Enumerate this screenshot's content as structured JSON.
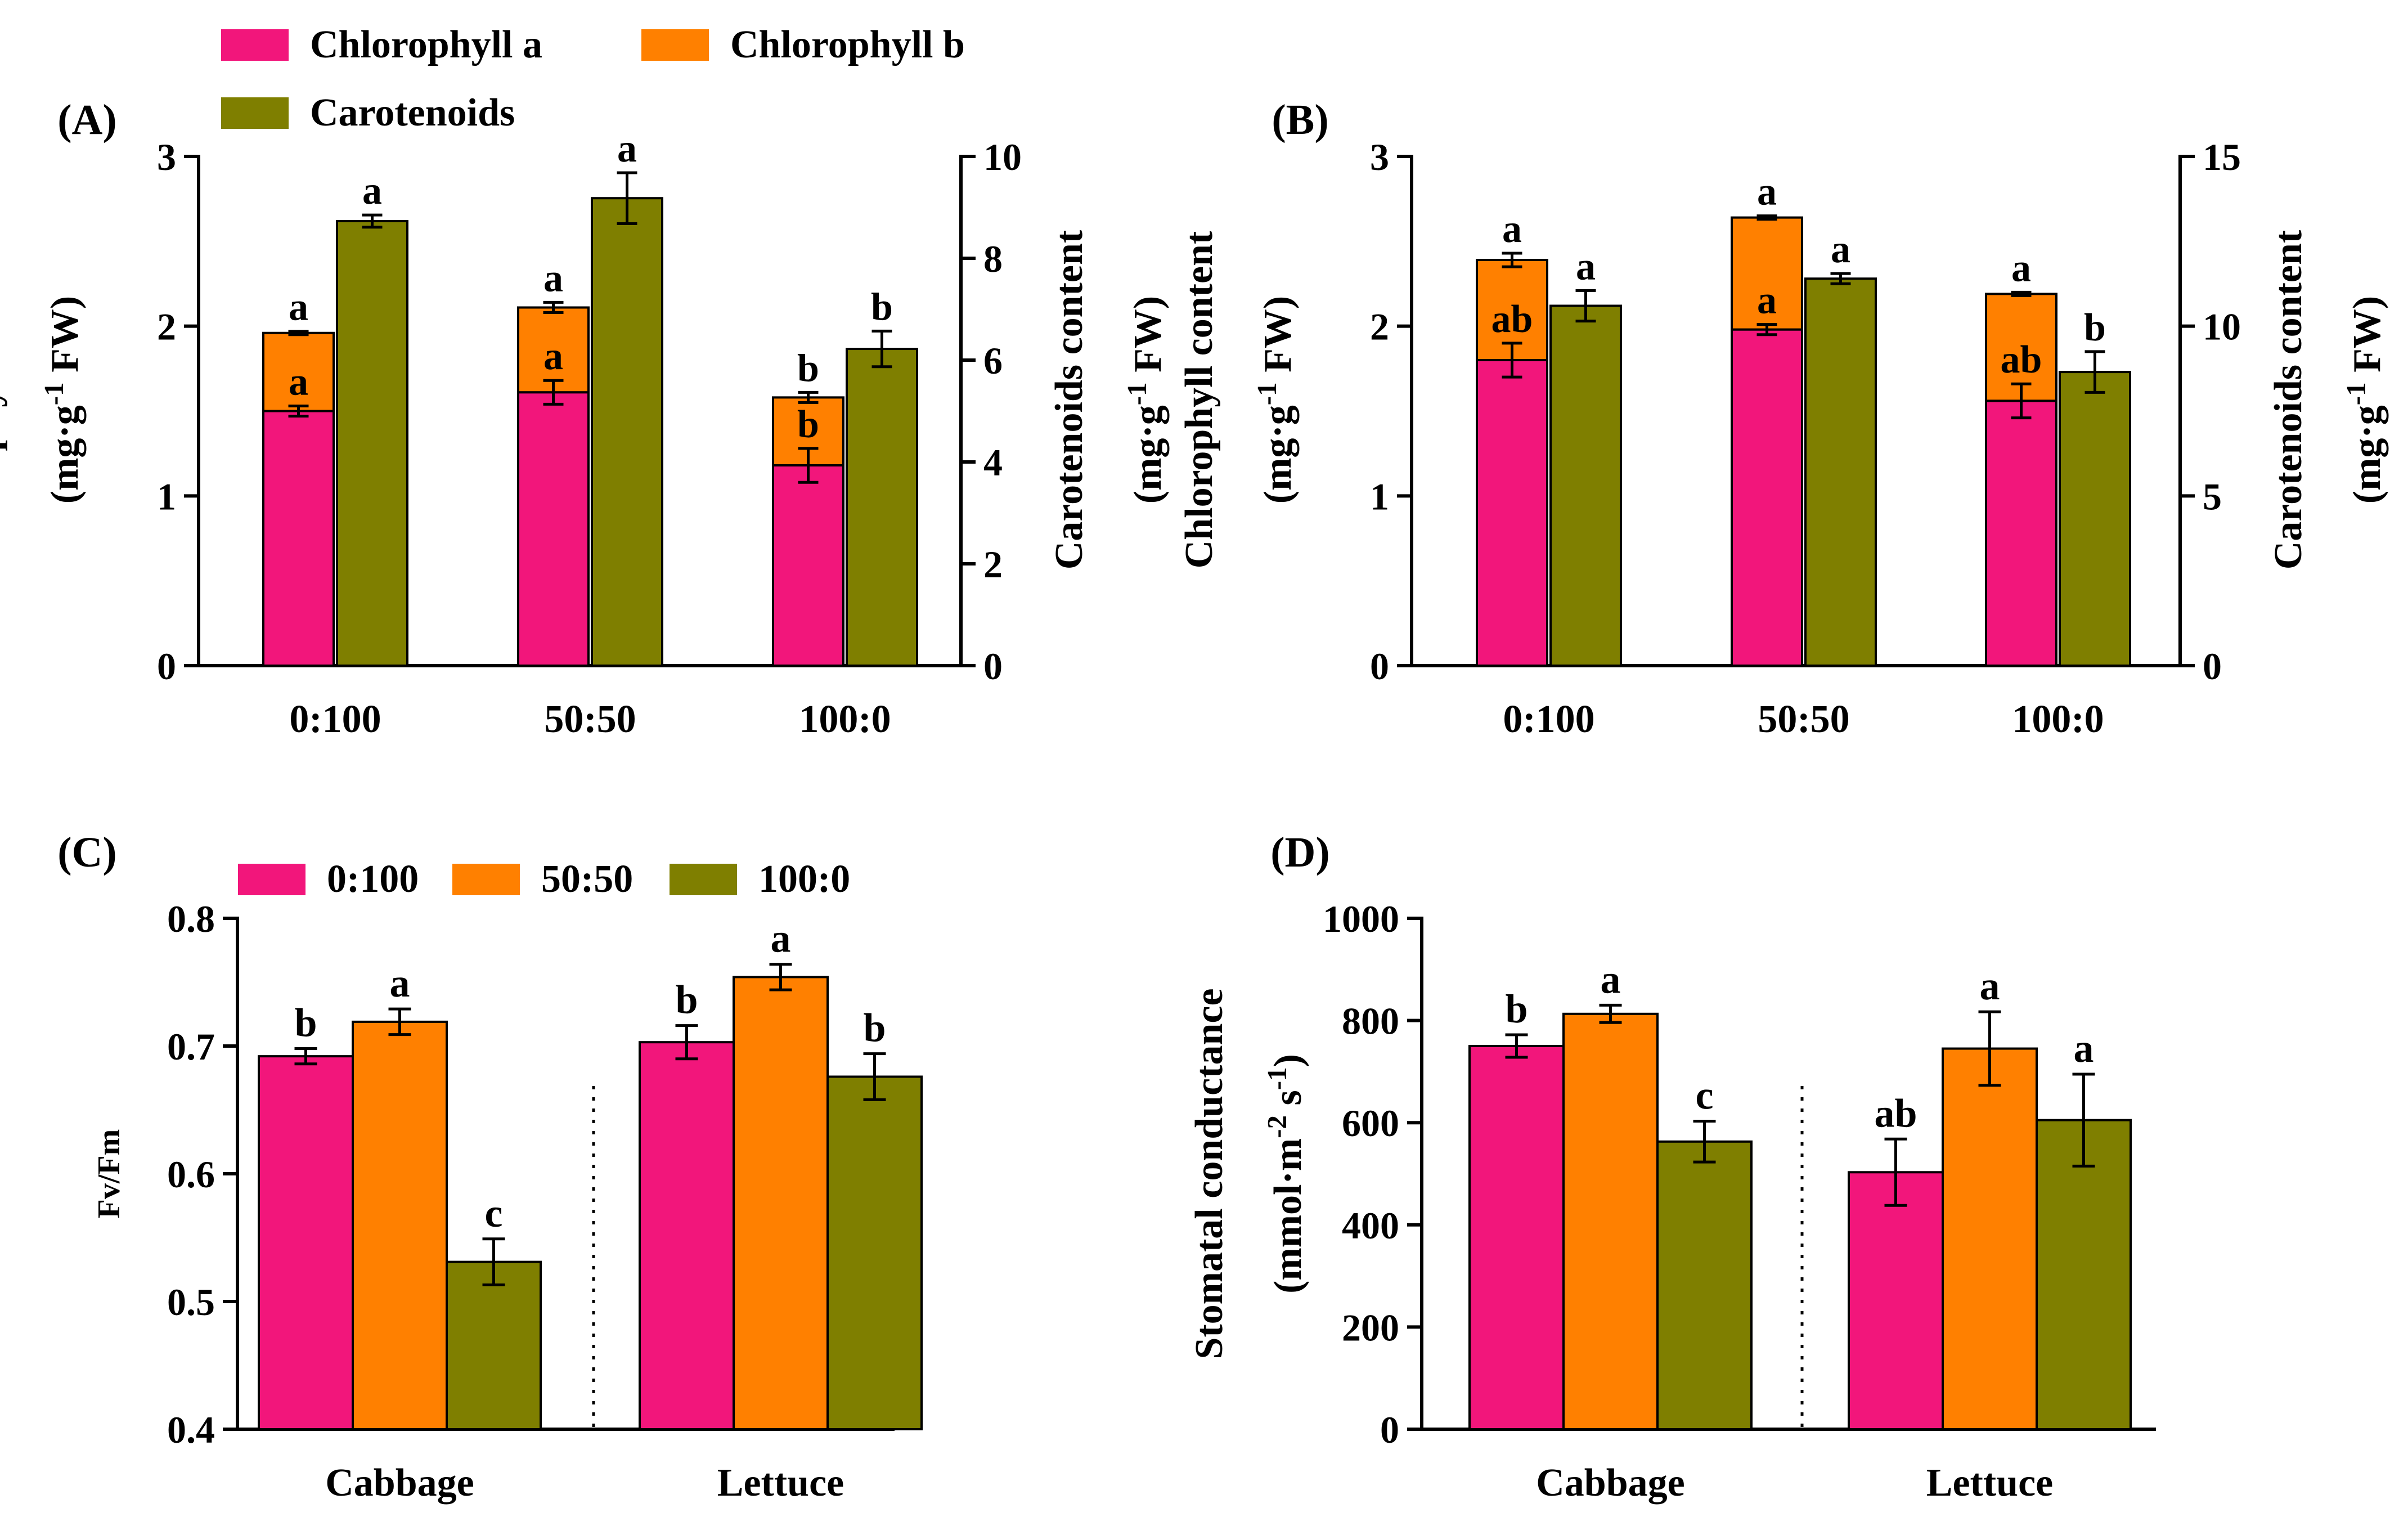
{
  "colors": {
    "pink": "#F2167B",
    "orange": "#FF8000",
    "olive": "#7F7F00",
    "axis": "#000000"
  },
  "chart_data": [
    {
      "id": "A",
      "panel_label": "(A)",
      "type": "bar",
      "subtype": "stacked-plus-grouped",
      "legend": [
        {
          "label": "Chlorophyll a",
          "color": "#F2167B"
        },
        {
          "label": "Chlorophyll b",
          "color": "#FF8000"
        },
        {
          "label": "Carotenoids",
          "color": "#7F7F00"
        }
      ],
      "categories": [
        "0:100",
        "50:50",
        "100:0"
      ],
      "ylabel_left": [
        "Chlorophyll content",
        "(mg·g",
        "-1",
        " FW)"
      ],
      "ylabel_right": [
        "Carotenoids content",
        "(mg·g",
        "-1",
        " FW)"
      ],
      "ylim_left": [
        0,
        3
      ],
      "yticks_left": [
        "0",
        "1",
        "2",
        "3"
      ],
      "ylim_right": [
        0,
        10
      ],
      "yticks_right": [
        "0",
        "2",
        "4",
        "6",
        "8",
        "10"
      ],
      "series": [
        {
          "name": "Chlorophyll a",
          "axis": "left",
          "values": [
            1.5,
            1.61,
            1.18
          ],
          "err": [
            0.03,
            0.07,
            0.1
          ],
          "letters": [
            "a",
            "a",
            "b"
          ]
        },
        {
          "name": "Chlorophyll b",
          "axis": "left",
          "stacked_on": "Chlorophyll a",
          "values": [
            0.46,
            0.5,
            0.4
          ],
          "err": [
            0.01,
            0.03,
            0.03
          ],
          "letters": [
            "a",
            "a",
            "b"
          ]
        },
        {
          "name": "Carotenoids",
          "axis": "right",
          "values": [
            8.73,
            9.18,
            6.22
          ],
          "err": [
            0.12,
            0.5,
            0.35
          ],
          "letters": [
            "a",
            "a",
            "b"
          ]
        }
      ]
    },
    {
      "id": "B",
      "panel_label": "(B)",
      "type": "bar",
      "subtype": "stacked-plus-grouped",
      "categories": [
        "0:100",
        "50:50",
        "100:0"
      ],
      "ylabel_left": [
        "Chlorophyll content",
        "(mg·g",
        "-1",
        " FW)"
      ],
      "ylabel_right": [
        "Carotenoids content",
        "(mg·g",
        "-1",
        " FW)"
      ],
      "ylim_left": [
        0,
        3
      ],
      "yticks_left": [
        "0",
        "1",
        "2",
        "3"
      ],
      "ylim_right": [
        0,
        15
      ],
      "yticks_right": [
        "0",
        "5",
        "10",
        "15"
      ],
      "series": [
        {
          "name": "Chlorophyll a",
          "axis": "left",
          "values": [
            1.8,
            1.98,
            1.56
          ],
          "err": [
            0.1,
            0.03,
            0.1
          ],
          "letters": [
            "ab",
            "a",
            "ab"
          ]
        },
        {
          "name": "Chlorophyll b",
          "axis": "left",
          "stacked_on": "Chlorophyll a",
          "values": [
            0.59,
            0.66,
            0.63
          ],
          "err": [
            0.04,
            0.01,
            0.01
          ],
          "letters": [
            "a",
            "a",
            "a"
          ]
        },
        {
          "name": "Carotenoids",
          "axis": "right",
          "values": [
            10.6,
            11.4,
            8.65
          ],
          "err": [
            0.45,
            0.15,
            0.6
          ],
          "letters": [
            "a",
            "a",
            "b"
          ]
        }
      ]
    },
    {
      "id": "C",
      "panel_label": "(C)",
      "type": "bar",
      "legend": [
        {
          "label": "0:100",
          "color": "#F2167B"
        },
        {
          "label": "50:50",
          "color": "#FF8000"
        },
        {
          "label": "100:0",
          "color": "#7F7F00"
        }
      ],
      "categories": [
        "Cabbage",
        "Lettuce"
      ],
      "ylabel": "Fv/Fm",
      "ylim": [
        0.4,
        0.8
      ],
      "yticks": [
        "0.4",
        "0.5",
        "0.6",
        "0.7",
        "0.8"
      ],
      "series": [
        {
          "name": "0:100",
          "values": [
            0.692,
            0.703
          ],
          "err": [
            0.006,
            0.013
          ],
          "letters": [
            "b",
            "b"
          ]
        },
        {
          "name": "50:50",
          "values": [
            0.719,
            0.754
          ],
          "err": [
            0.01,
            0.01
          ],
          "letters": [
            "a",
            "a"
          ]
        },
        {
          "name": "100:0",
          "values": [
            0.531,
            0.676
          ],
          "err": [
            0.018,
            0.018
          ],
          "letters": [
            "c",
            "b"
          ]
        }
      ]
    },
    {
      "id": "D",
      "panel_label": "(D)",
      "type": "bar",
      "categories": [
        "Cabbage",
        "Lettuce"
      ],
      "ylabel": [
        "Stomatal conductance",
        "(mmol·m",
        "-2",
        " s",
        "-1",
        ")"
      ],
      "ylim": [
        0,
        1000
      ],
      "yticks": [
        "0",
        "200",
        "400",
        "600",
        "800",
        "1000"
      ],
      "series": [
        {
          "name": "0:100",
          "values": [
            750,
            503
          ],
          "err": [
            22,
            65
          ],
          "letters": [
            "b",
            "ab"
          ]
        },
        {
          "name": "50:50",
          "values": [
            813,
            745
          ],
          "err": [
            17,
            72
          ],
          "letters": [
            "a",
            "a"
          ]
        },
        {
          "name": "100:0",
          "values": [
            563,
            605
          ],
          "err": [
            40,
            90
          ],
          "letters": [
            "c",
            "a"
          ]
        }
      ]
    }
  ]
}
